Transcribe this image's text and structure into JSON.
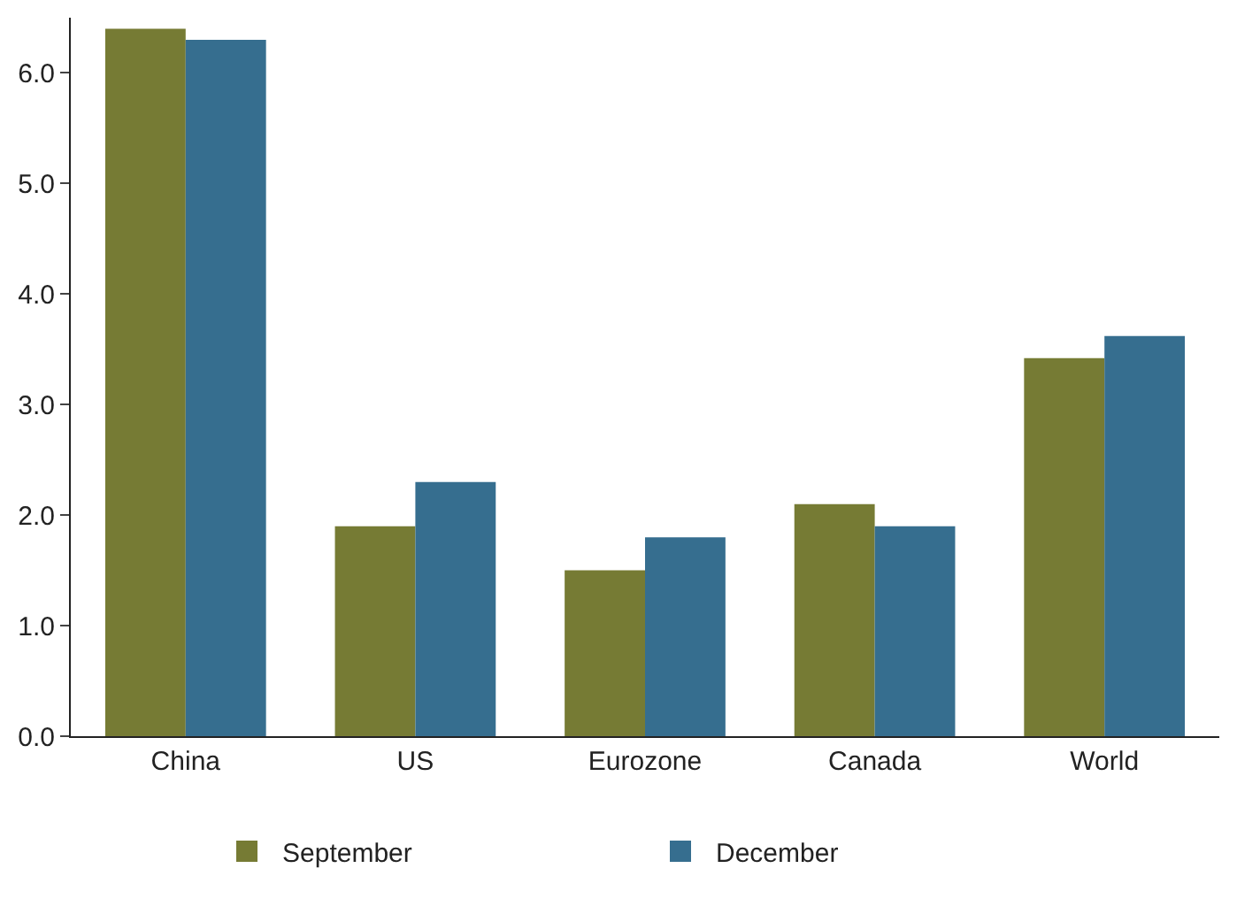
{
  "chart_data": {
    "type": "bar",
    "categories": [
      "China",
      "US",
      "Eurozone",
      "Canada",
      "World"
    ],
    "series": [
      {
        "name": "September",
        "color": "#767b34",
        "values": [
          6.4,
          1.9,
          1.5,
          2.1,
          3.42
        ]
      },
      {
        "name": "December",
        "color": "#366e8f",
        "values": [
          6.3,
          2.3,
          1.8,
          1.9,
          3.62
        ]
      }
    ],
    "ylim": [
      0,
      6.5
    ],
    "yticks": [
      {
        "value": 0,
        "label": "0.0"
      },
      {
        "value": 1,
        "label": "1.0"
      },
      {
        "value": 2,
        "label": "2.0"
      },
      {
        "value": 3,
        "label": "3.0"
      },
      {
        "value": 4,
        "label": "4.0"
      },
      {
        "value": 5,
        "label": "5.0"
      },
      {
        "value": 6,
        "label": "6.0"
      }
    ],
    "legend": "bottom"
  }
}
